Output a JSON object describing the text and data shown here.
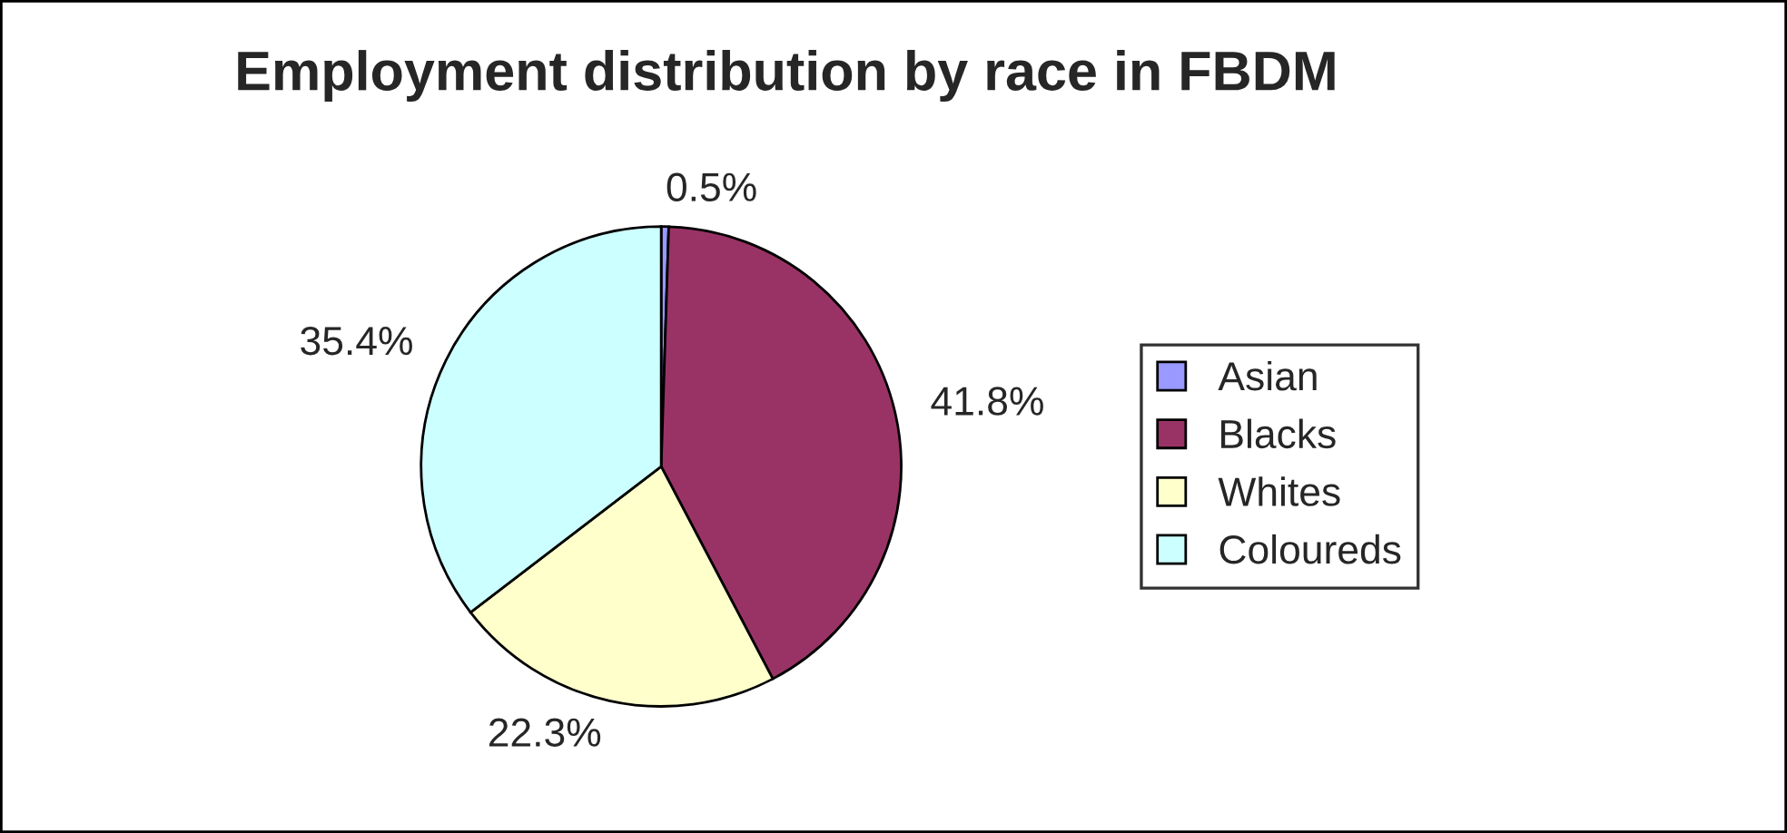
{
  "chart_data": {
    "type": "pie",
    "title": "Employment distribution by race in FBDM",
    "categories": [
      "Asian",
      "Blacks",
      "Whites",
      "Coloureds"
    ],
    "values": [
      0.5,
      41.8,
      22.3,
      35.4
    ],
    "value_labels": [
      "0.5%",
      "41.8%",
      "22.3%",
      "35.4%"
    ],
    "colors": [
      "#9999ff",
      "#993366",
      "#ffffcc",
      "#ccffff"
    ],
    "legend": "right"
  }
}
